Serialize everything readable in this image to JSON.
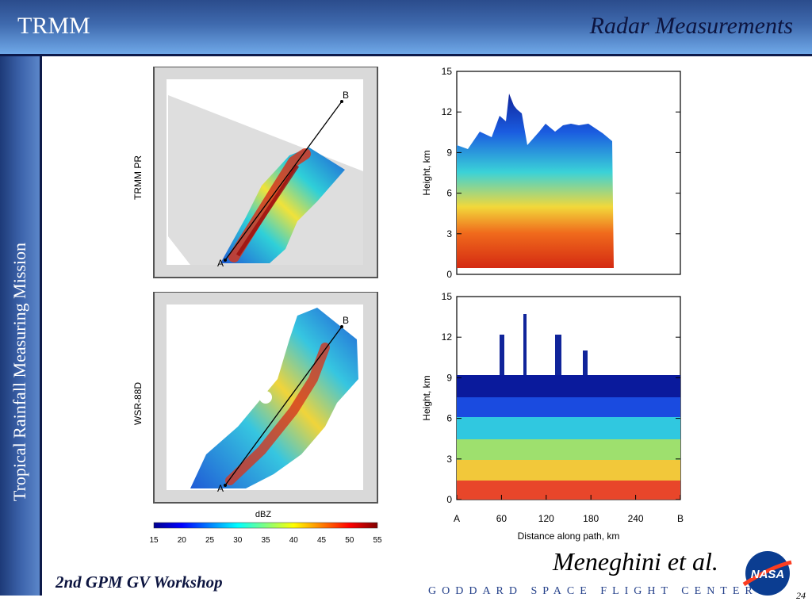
{
  "header": {
    "title": "TRMM",
    "subtitle": "Radar Measurements"
  },
  "sidebar": {
    "text": "Tropical Rainfall Measuring Mission"
  },
  "maps": [
    {
      "label": "TRMM PR",
      "point_a": "A",
      "point_b": "B"
    },
    {
      "label": "WSR-88D",
      "point_a": "A",
      "point_b": "B"
    }
  ],
  "colorbar": {
    "title": "dBZ",
    "ticks": [
      "15",
      "20",
      "25",
      "30",
      "35",
      "40",
      "45",
      "50",
      "55"
    ]
  },
  "chart_data": [
    {
      "type": "heatmap",
      "title": "",
      "ylabel": "Height, km",
      "xlabel": "",
      "yticks": [
        "0",
        "3",
        "6",
        "9",
        "12",
        "15"
      ],
      "ylim": [
        0,
        15
      ],
      "source": "TRMM PR"
    },
    {
      "type": "heatmap",
      "title": "",
      "ylabel": "Height, km",
      "xlabel": "Distance along path, km",
      "xticks": [
        "A",
        "60",
        "120",
        "180",
        "240",
        "B"
      ],
      "yticks": [
        "0",
        "3",
        "6",
        "9",
        "12",
        "15"
      ],
      "ylim": [
        0,
        15
      ],
      "source": "WSR-88D"
    }
  ],
  "citation": "Meneghini et al.",
  "footer": {
    "left": "2nd GPM GV Workshop",
    "right": "GODDARD SPACE FLIGHT CENTER"
  },
  "logo": {
    "text": "NASA"
  },
  "page_number": "24"
}
